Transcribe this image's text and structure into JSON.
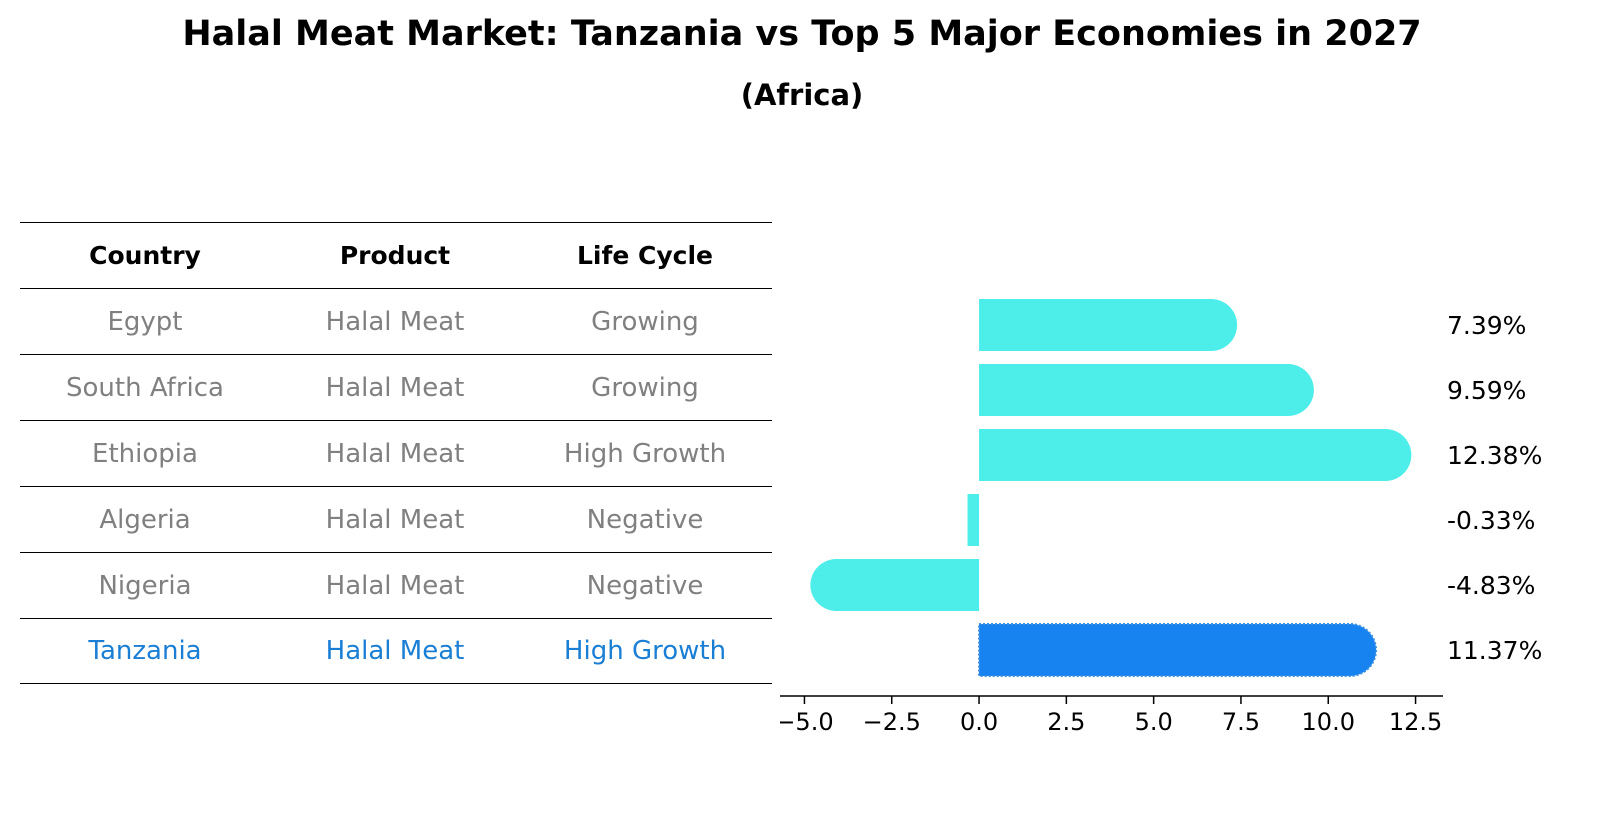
{
  "header": {
    "title": "Halal Meat Market: Tanzania vs Top 5 Major Economies in 2027",
    "subtitle": "(Africa)"
  },
  "table": {
    "columns": [
      "Country",
      "Product",
      "Life Cycle"
    ],
    "rows": [
      {
        "country": "Egypt",
        "product": "Halal Meat",
        "life_cycle": "Growing"
      },
      {
        "country": "South Africa",
        "product": "Halal Meat",
        "life_cycle": "Growing"
      },
      {
        "country": "Ethiopia",
        "product": "Halal Meat",
        "life_cycle": "High Growth"
      },
      {
        "country": "Algeria",
        "product": "Halal Meat",
        "life_cycle": "Negative"
      },
      {
        "country": "Nigeria",
        "product": "Halal Meat",
        "life_cycle": "Negative"
      },
      {
        "country": "Tanzania",
        "product": "Halal Meat",
        "life_cycle": "High Growth"
      }
    ]
  },
  "chart_data": {
    "type": "bar",
    "orientation": "horizontal",
    "categories": [
      "Egypt",
      "South Africa",
      "Ethiopia",
      "Algeria",
      "Nigeria",
      "Tanzania"
    ],
    "values": [
      7.39,
      9.59,
      12.38,
      -0.33,
      -4.83,
      11.37
    ],
    "value_labels": [
      "7.39%",
      "9.59%",
      "12.38%",
      "-0.33%",
      "-4.83%",
      "11.37%"
    ],
    "highlight_category": "Tanzania",
    "xlim": [
      -5.7,
      13.2
    ],
    "xticks": [
      -5.0,
      -2.5,
      0.0,
      2.5,
      5.0,
      7.5,
      10.0,
      12.5
    ],
    "xtick_labels": [
      "−5.0",
      "−2.5",
      "0.0",
      "2.5",
      "5.0",
      "7.5",
      "10.0",
      "12.5"
    ],
    "colors": {
      "default": "#4deeea",
      "highlight": "#1683f0",
      "text_muted": "#808080",
      "text_highlight": "#1a7fd4"
    }
  }
}
